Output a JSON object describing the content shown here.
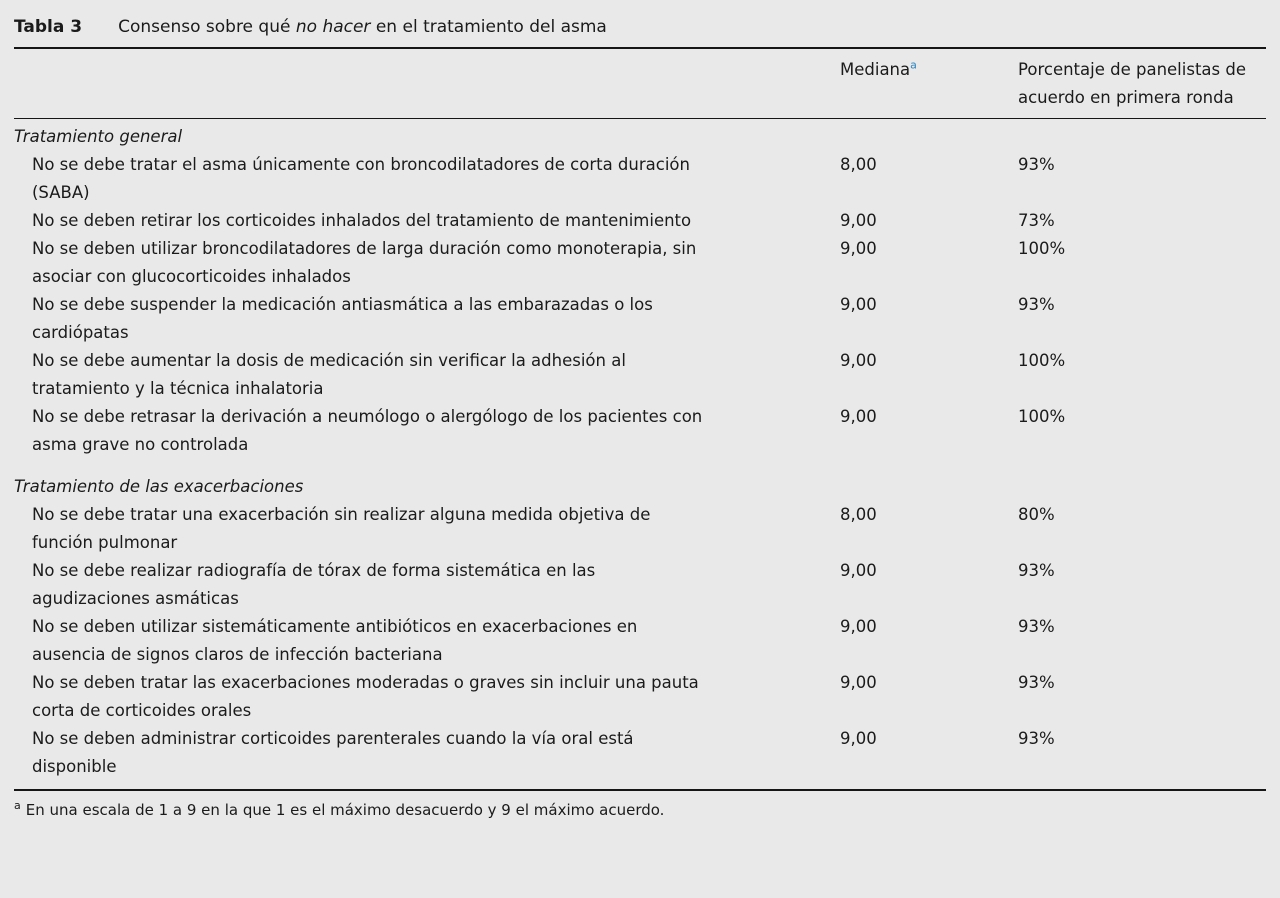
{
  "colors": {
    "background": "#e9e9e9",
    "text": "#1b1b1b",
    "rule": "#161616",
    "superscript_blue": "#2e86c1"
  },
  "table": {
    "caption": {
      "label": "Tabla 3",
      "title_pre": "Consenso sobre qué ",
      "title_italic": "no hacer",
      "title_post": " en el tratamiento del asma"
    },
    "header": {
      "mediana_label": "Mediana",
      "mediana_marker": "a",
      "porcentaje_label": "Porcentaje de panelistas de acuerdo en primera ronda"
    },
    "sections": [
      {
        "header": "Tratamiento general",
        "rows": [
          {
            "text": "No se debe tratar el asma únicamente con broncodilatadores de corta duración (SABA)",
            "mediana": "8,00",
            "porcentaje": "93%"
          },
          {
            "text": "No se deben retirar los corticoides inhalados del tratamiento de mantenimiento",
            "mediana": "9,00",
            "porcentaje": "73%"
          },
          {
            "text": "No se deben utilizar broncodilatadores de larga duración como monoterapia, sin asociar con glucocorticoides inhalados",
            "mediana": "9,00",
            "porcentaje": "100%"
          },
          {
            "text": "No se debe suspender la medicación antiasmática a las embarazadas o los cardiópatas",
            "mediana": "9,00",
            "porcentaje": "93%"
          },
          {
            "text": "No se debe aumentar la dosis de medicación sin verificar la adhesión al tratamiento y la técnica inhalatoria",
            "mediana": "9,00",
            "porcentaje": "100%"
          },
          {
            "text": "No se debe retrasar la derivación a neumólogo o alergólogo de los pacientes con asma grave no controlada",
            "mediana": "9,00",
            "porcentaje": "100%"
          }
        ]
      },
      {
        "header": "Tratamiento de las exacerbaciones",
        "rows": [
          {
            "text": "No se debe tratar una exacerbación sin realizar alguna medida objetiva de función pulmonar",
            "mediana": "8,00",
            "porcentaje": "80%"
          },
          {
            "text": "No se debe realizar radiografía de tórax de forma sistemática en las agudizaciones asmáticas",
            "mediana": "9,00",
            "porcentaje": "93%"
          },
          {
            "text": "No se deben utilizar sistemáticamente antibióticos en exacerbaciones en ausencia de signos claros de infección bacteriana",
            "mediana": "9,00",
            "porcentaje": "93%"
          },
          {
            "text": "No se deben tratar las exacerbaciones moderadas o graves sin incluir una pauta corta de corticoides orales",
            "mediana": "9,00",
            "porcentaje": "93%"
          },
          {
            "text": "No se deben administrar corticoides parenterales cuando la vía oral está disponible",
            "mediana": "9,00",
            "porcentaje": "93%"
          }
        ]
      }
    ],
    "footnote": {
      "marker": "a",
      "text": "En una escala de 1 a 9 en la que 1 es el máximo desacuerdo y 9 el máximo acuerdo."
    }
  }
}
